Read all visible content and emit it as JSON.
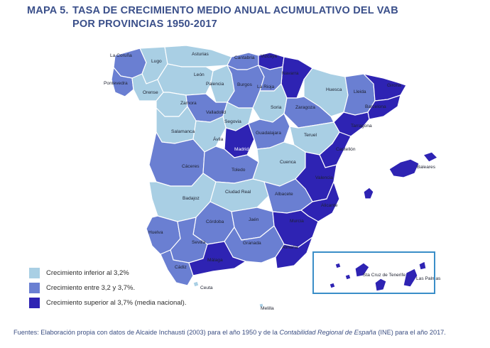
{
  "title": {
    "number": "MAPA 5.",
    "line1": "TASA DE CRECIMIENTO MEDIO ANUAL ACUMULATIVO DEL VAB",
    "line2": "POR PROVINCIAS 1950-2017"
  },
  "colors": {
    "low": "#a9cfe4",
    "mid": "#6a7fd2",
    "high": "#2e23b3"
  },
  "legend": [
    {
      "label": "Crecimiento inferior al 3,2%",
      "class": "low"
    },
    {
      "label": "Crecimiento entre 3,2 y 3,7%.",
      "class": "mid"
    },
    {
      "label": "Crecimiento superior al 3,7% (media nacional).",
      "class": "high"
    }
  ],
  "provinces": [
    {
      "name": "La Coruña",
      "class": "mid"
    },
    {
      "name": "Lugo",
      "class": "low"
    },
    {
      "name": "Pontevedra",
      "class": "mid"
    },
    {
      "name": "Orense",
      "class": "low"
    },
    {
      "name": "Asturias",
      "class": "low"
    },
    {
      "name": "Cantabria",
      "class": "mid"
    },
    {
      "name": "Vizcaya",
      "class": "high"
    },
    {
      "name": "Navarra",
      "class": "high"
    },
    {
      "name": "León",
      "class": "low"
    },
    {
      "name": "Palencia",
      "class": "low"
    },
    {
      "name": "Burgos",
      "class": "mid"
    },
    {
      "name": "La Rioja",
      "class": "mid"
    },
    {
      "name": "Huesca",
      "class": "low"
    },
    {
      "name": "Lleida",
      "class": "mid"
    },
    {
      "name": "Girona",
      "class": "high"
    },
    {
      "name": "Barcelona",
      "class": "high"
    },
    {
      "name": "Tarragona",
      "class": "high"
    },
    {
      "name": "Zamora",
      "class": "low"
    },
    {
      "name": "Valladolid",
      "class": "mid"
    },
    {
      "name": "Soria",
      "class": "low"
    },
    {
      "name": "Zaragoza",
      "class": "mid"
    },
    {
      "name": "Segovia",
      "class": "low"
    },
    {
      "name": "Salamanca",
      "class": "low"
    },
    {
      "name": "Ávila",
      "class": "low"
    },
    {
      "name": "Madrid",
      "class": "high"
    },
    {
      "name": "Guadalajara",
      "class": "mid"
    },
    {
      "name": "Teruel",
      "class": "low"
    },
    {
      "name": "Castellón",
      "class": "high"
    },
    {
      "name": "Cáceres",
      "class": "mid"
    },
    {
      "name": "Toledo",
      "class": "mid"
    },
    {
      "name": "Cuenca",
      "class": "low"
    },
    {
      "name": "Valencia",
      "class": "high"
    },
    {
      "name": "Badajoz",
      "class": "low"
    },
    {
      "name": "Ciudad Real",
      "class": "low"
    },
    {
      "name": "Albacete",
      "class": "mid"
    },
    {
      "name": "Alicante",
      "class": "high"
    },
    {
      "name": "Huelva",
      "class": "mid"
    },
    {
      "name": "Córdoba",
      "class": "mid"
    },
    {
      "name": "Jaén",
      "class": "mid"
    },
    {
      "name": "Murcia",
      "class": "high"
    },
    {
      "name": "Sevilla",
      "class": "mid"
    },
    {
      "name": "Granada",
      "class": "mid"
    },
    {
      "name": "Almería",
      "class": "high"
    },
    {
      "name": "Cádiz",
      "class": "mid"
    },
    {
      "name": "Málaga",
      "class": "high"
    },
    {
      "name": "Baleares",
      "class": "high"
    },
    {
      "name": "Ceuta",
      "class": "low"
    },
    {
      "name": "Melilla",
      "class": "low"
    },
    {
      "name": "Sta Cruz de Tenerife",
      "class": "high"
    },
    {
      "name": "Las Palmas",
      "class": "high"
    }
  ],
  "source": {
    "prefix": "Fuentes: Elaboración propia con datos de Alcaide Inchausti (2003) para el año 1950 y de la ",
    "italic": "Contabilidad Regional de España",
    "suffix": " (INE) para el año 2017."
  }
}
